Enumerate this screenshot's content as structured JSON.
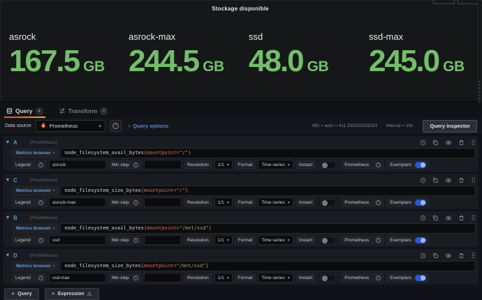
{
  "panel": {
    "title": "Stockage disponible",
    "value_color": "#73bf69",
    "stats": [
      {
        "label": "asrock",
        "value": "167.5",
        "unit": "GB"
      },
      {
        "label": "asrock-max",
        "value": "244.5",
        "unit": "GB"
      },
      {
        "label": "ssd",
        "value": "48.0",
        "unit": "GB"
      },
      {
        "label": "ssd-max",
        "value": "245.0",
        "unit": "GB"
      }
    ]
  },
  "tabs": [
    {
      "label": "Query",
      "count": "4",
      "active": true
    },
    {
      "label": "Transform",
      "count": "0",
      "active": false
    }
  ],
  "toolbar": {
    "datasource_label": "Data source",
    "datasource_value": "Prometheus",
    "query_options_label": "Query options",
    "md_text": "MD = auto = 411.333333333333",
    "interval_text": "Interval = 10s",
    "inspector_label": "Query inspector"
  },
  "query_row_shared": {
    "metrics_browser": "Metrics browser",
    "legend": "Legend",
    "min_step": "Min step",
    "resolution": "Resolution",
    "resolution_value": "1/1",
    "format": "Format",
    "format_value": "Time series",
    "instant": "Instant",
    "prometheus": "Prometheus",
    "exemplars": "Exemplars"
  },
  "queries": [
    {
      "refid": "A",
      "ds_note": "(Prometheus)",
      "metric": "node_filesystem_avail_bytes",
      "label_name": "mountpoint",
      "label_value": "\"/\"",
      "legend_value": "asrock"
    },
    {
      "refid": "C",
      "ds_note": "(Prometheus)",
      "metric": "node_filesystem_size_bytes",
      "label_name": "mountpoint",
      "label_value": "\"/\"",
      "legend_value": "asrock-max"
    },
    {
      "refid": "B",
      "ds_note": "(Prometheus)",
      "metric": "node_filesystem_avail_bytes",
      "label_name": "mountpoint",
      "label_value": "\"/mnt/ssd\"",
      "legend_value": "ssd"
    },
    {
      "refid": "D",
      "ds_note": "(Prometheus)",
      "metric": "node_filesystem_size_bytes",
      "label_name": "mountpoint",
      "label_value": "\"/mnt/ssd\"",
      "legend_value": "ssd-max"
    }
  ],
  "footer": {
    "query_button": "Query",
    "expression_button": "Expression"
  },
  "colors": {
    "stat_green": "#73bf69",
    "tab_accent_orange": "#f05a28",
    "link_blue": "#5083e5",
    "refid_blue": "#3d9ae8"
  }
}
